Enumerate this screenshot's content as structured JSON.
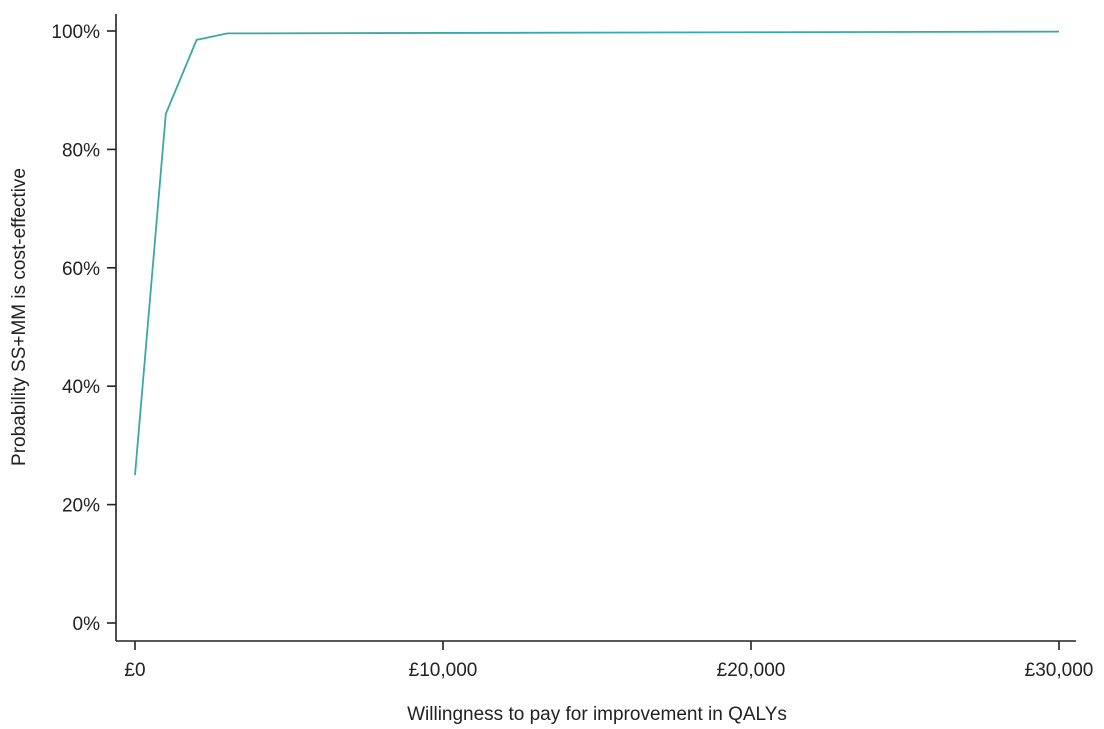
{
  "chart_data": {
    "type": "line",
    "title": "",
    "xlabel": "Willingness to pay for improvement in QALYs",
    "ylabel": "Probability SS+MM is cost-effective",
    "xlim": [
      0,
      30000
    ],
    "ylim": [
      0,
      1
    ],
    "x_ticks": [
      0,
      10000,
      20000,
      30000
    ],
    "x_tick_labels": [
      "£0",
      "£10,000",
      "£20,000",
      "£30,000"
    ],
    "y_ticks": [
      0,
      0.2,
      0.4,
      0.6,
      0.8,
      1.0
    ],
    "y_tick_labels": [
      "0%",
      "20%",
      "40%",
      "60%",
      "80%",
      "100%"
    ],
    "grid": false,
    "legend": "none",
    "series": [
      {
        "color": "#3aa8a6",
        "x": [
          0,
          1000,
          2000,
          3000,
          30000
        ],
        "y": [
          0.25,
          0.86,
          0.985,
          0.996,
          0.999
        ]
      }
    ]
  }
}
